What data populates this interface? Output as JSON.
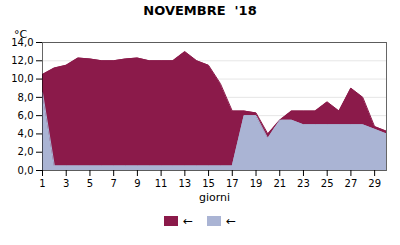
{
  "chart_data": {
    "type": "area",
    "title": "NOVEMBRE  '18",
    "xlabel": "giorni",
    "ylabel": "°C",
    "x": [
      1,
      2,
      3,
      4,
      5,
      6,
      7,
      8,
      9,
      10,
      11,
      12,
      13,
      14,
      15,
      16,
      17,
      18,
      19,
      20,
      21,
      22,
      23,
      24,
      25,
      26,
      27,
      28,
      29,
      30
    ],
    "series": [
      {
        "name": "←",
        "color": "#8b1a4a",
        "values": [
          10.5,
          11.2,
          11.5,
          12.3,
          12.2,
          12.0,
          12.0,
          12.2,
          12.3,
          12.0,
          12.0,
          12.0,
          13.0,
          12.0,
          11.5,
          9.5,
          6.5,
          6.5,
          6.3,
          4.0,
          5.5,
          6.5,
          6.5,
          6.5,
          7.5,
          6.5,
          9.0,
          8.0,
          4.8,
          4.3
        ]
      },
      {
        "name": "←",
        "color": "#aab4d4",
        "values": [
          8.5,
          0.5,
          0.5,
          0.5,
          0.5,
          0.5,
          0.5,
          0.5,
          0.5,
          0.5,
          0.5,
          0.5,
          0.5,
          0.5,
          0.5,
          0.5,
          0.5,
          6.0,
          6.0,
          3.5,
          5.5,
          5.5,
          5.0,
          5.0,
          5.0,
          5.0,
          5.0,
          5.0,
          4.5,
          4.0
        ]
      }
    ],
    "xlim": [
      1,
      30
    ],
    "ylim": [
      0,
      14
    ],
    "xticks": [
      1,
      3,
      5,
      7,
      9,
      11,
      13,
      15,
      17,
      19,
      21,
      23,
      25,
      27,
      29
    ],
    "yticks": [
      {
        "value": 0,
        "label": "0,0"
      },
      {
        "value": 2,
        "label": "2,0"
      },
      {
        "value": 4,
        "label": "4,0"
      },
      {
        "value": 6,
        "label": "6,0"
      },
      {
        "value": 8,
        "label": "8,0"
      },
      {
        "value": 10,
        "label": "10,0"
      },
      {
        "value": 12,
        "label": "12,0"
      },
      {
        "value": 14,
        "label": "14,0"
      }
    ],
    "grid": "y",
    "legend": "bottom"
  }
}
